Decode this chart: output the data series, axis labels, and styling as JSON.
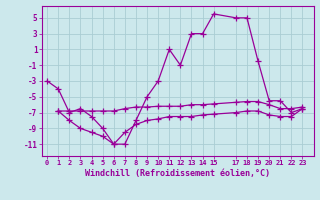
{
  "xlabel": "Windchill (Refroidissement éolien,°C)",
  "background_color": "#cce8ec",
  "grid_color": "#aacdd4",
  "line_color": "#990099",
  "x_ticks": [
    0,
    1,
    2,
    3,
    4,
    5,
    6,
    7,
    8,
    9,
    10,
    11,
    12,
    13,
    14,
    15,
    17,
    18,
    19,
    20,
    21,
    22,
    23
  ],
  "y_ticks": [
    -11,
    -9,
    -7,
    -5,
    -3,
    -1,
    1,
    3,
    5
  ],
  "ylim": [
    -12.5,
    6.5
  ],
  "xlim": [
    -0.5,
    24.0
  ],
  "series1_x": [
    0,
    1,
    2,
    3,
    4,
    5,
    6,
    7,
    8,
    9,
    10,
    11,
    12,
    13,
    14,
    15,
    17,
    18,
    19,
    20,
    21,
    22,
    23
  ],
  "series1_y": [
    -3,
    -4,
    -7,
    -6.5,
    -7.5,
    -9,
    -11,
    -11,
    -8,
    -5,
    -3,
    1,
    -1,
    3,
    3,
    5.5,
    5,
    5,
    -0.5,
    -5.5,
    -5.5,
    -7,
    -6.5
  ],
  "series2_x": [
    1,
    2,
    3,
    4,
    5,
    6,
    7,
    8,
    9,
    10,
    11,
    12,
    13,
    14,
    15,
    17,
    18,
    19,
    20,
    21,
    22,
    23
  ],
  "series2_y": [
    -6.8,
    -6.8,
    -6.8,
    -6.8,
    -6.8,
    -6.8,
    -6.5,
    -6.3,
    -6.3,
    -6.2,
    -6.2,
    -6.2,
    -6.0,
    -6.0,
    -5.9,
    -5.7,
    -5.6,
    -5.6,
    -6.0,
    -6.5,
    -6.5,
    -6.3
  ],
  "series3_x": [
    1,
    2,
    3,
    4,
    5,
    6,
    7,
    8,
    9,
    10,
    11,
    12,
    13,
    14,
    15,
    17,
    18,
    19,
    20,
    21,
    22,
    23
  ],
  "series3_y": [
    -6.8,
    -8.0,
    -9.0,
    -9.5,
    -10.0,
    -11.0,
    -9.5,
    -8.5,
    -8.0,
    -7.8,
    -7.5,
    -7.5,
    -7.5,
    -7.3,
    -7.2,
    -7.0,
    -6.8,
    -6.8,
    -7.3,
    -7.5,
    -7.5,
    -6.5
  ]
}
